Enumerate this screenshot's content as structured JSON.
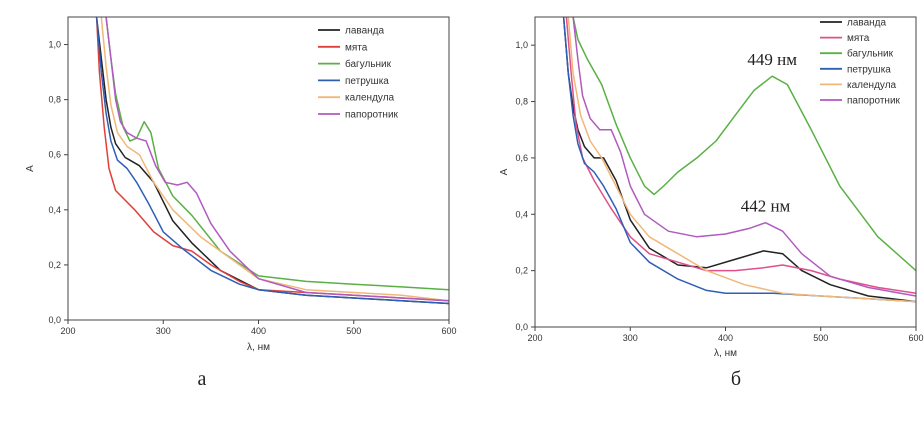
{
  "chart_data": [
    {
      "type": "line",
      "panel_label": "а",
      "xlabel": "λ, нм",
      "ylabel": "A",
      "xlim": [
        200,
        600
      ],
      "ylim": [
        0.0,
        1.1
      ],
      "xticks": [
        200,
        300,
        400,
        500,
        600
      ],
      "yticks": [
        0.0,
        0.2,
        0.4,
        0.6,
        0.8,
        1.0
      ],
      "ytick_labels": [
        "0,0",
        "0,2",
        "0,4",
        "0,6",
        "0,8",
        "1,0"
      ],
      "grid": false,
      "legend": "top-right",
      "annotations": [],
      "series": [
        {
          "name": "лаванда",
          "color": "#222222",
          "points": [
            [
              230,
              1.1
            ],
            [
              235,
              0.95
            ],
            [
              240,
              0.8
            ],
            [
              245,
              0.7
            ],
            [
              250,
              0.64
            ],
            [
              260,
              0.59
            ],
            [
              275,
              0.56
            ],
            [
              290,
              0.5
            ],
            [
              310,
              0.36
            ],
            [
              330,
              0.28
            ],
            [
              360,
              0.18
            ],
            [
              400,
              0.11
            ],
            [
              450,
              0.09
            ],
            [
              500,
              0.08
            ],
            [
              550,
              0.07
            ],
            [
              600,
              0.06
            ]
          ]
        },
        {
          "name": "мята",
          "color": "#e0403a",
          "points": [
            [
              230,
              1.1
            ],
            [
              233,
              0.9
            ],
            [
              238,
              0.7
            ],
            [
              243,
              0.55
            ],
            [
              250,
              0.47
            ],
            [
              270,
              0.4
            ],
            [
              290,
              0.32
            ],
            [
              310,
              0.27
            ],
            [
              330,
              0.25
            ],
            [
              350,
              0.2
            ],
            [
              380,
              0.14
            ],
            [
              400,
              0.11
            ],
            [
              450,
              0.1
            ],
            [
              500,
              0.09
            ],
            [
              550,
              0.08
            ],
            [
              600,
              0.07
            ]
          ]
        },
        {
          "name": "багульник",
          "color": "#5ab045",
          "points": [
            [
              240,
              1.1
            ],
            [
              245,
              0.95
            ],
            [
              250,
              0.82
            ],
            [
              258,
              0.7
            ],
            [
              265,
              0.65
            ],
            [
              272,
              0.66
            ],
            [
              280,
              0.72
            ],
            [
              287,
              0.68
            ],
            [
              295,
              0.55
            ],
            [
              310,
              0.45
            ],
            [
              330,
              0.38
            ],
            [
              360,
              0.25
            ],
            [
              400,
              0.16
            ],
            [
              450,
              0.14
            ],
            [
              500,
              0.13
            ],
            [
              550,
              0.12
            ],
            [
              600,
              0.11
            ]
          ]
        },
        {
          "name": "петрушка",
          "color": "#2f5fb5",
          "points": [
            [
              230,
              1.1
            ],
            [
              235,
              0.9
            ],
            [
              240,
              0.75
            ],
            [
              245,
              0.65
            ],
            [
              252,
              0.58
            ],
            [
              262,
              0.55
            ],
            [
              272,
              0.5
            ],
            [
              285,
              0.42
            ],
            [
              300,
              0.32
            ],
            [
              320,
              0.26
            ],
            [
              350,
              0.18
            ],
            [
              380,
              0.13
            ],
            [
              400,
              0.11
            ],
            [
              450,
              0.09
            ],
            [
              500,
              0.08
            ],
            [
              550,
              0.07
            ],
            [
              600,
              0.06
            ]
          ]
        },
        {
          "name": "календула",
          "color": "#f0b878",
          "points": [
            [
              235,
              1.1
            ],
            [
              240,
              0.92
            ],
            [
              245,
              0.78
            ],
            [
              252,
              0.68
            ],
            [
              262,
              0.63
            ],
            [
              275,
              0.6
            ],
            [
              290,
              0.5
            ],
            [
              310,
              0.4
            ],
            [
              340,
              0.3
            ],
            [
              380,
              0.2
            ],
            [
              400,
              0.15
            ],
            [
              450,
              0.11
            ],
            [
              500,
              0.1
            ],
            [
              550,
              0.09
            ],
            [
              600,
              0.07
            ]
          ]
        },
        {
          "name": "папоротник",
          "color": "#b15ac0",
          "points": [
            [
              240,
              1.1
            ],
            [
              245,
              0.95
            ],
            [
              250,
              0.8
            ],
            [
              255,
              0.72
            ],
            [
              262,
              0.68
            ],
            [
              272,
              0.66
            ],
            [
              282,
              0.65
            ],
            [
              292,
              0.56
            ],
            [
              302,
              0.5
            ],
            [
              315,
              0.49
            ],
            [
              325,
              0.5
            ],
            [
              335,
              0.46
            ],
            [
              350,
              0.35
            ],
            [
              370,
              0.25
            ],
            [
              400,
              0.15
            ],
            [
              450,
              0.1
            ],
            [
              500,
              0.09
            ],
            [
              550,
              0.08
            ],
            [
              600,
              0.07
            ]
          ]
        }
      ]
    },
    {
      "type": "line",
      "panel_label": "б",
      "xlabel": "λ, нм",
      "ylabel": "A",
      "xlim": [
        200,
        600
      ],
      "ylim": [
        0.0,
        1.1
      ],
      "xticks": [
        200,
        300,
        400,
        500,
        600
      ],
      "yticks": [
        0.0,
        0.2,
        0.4,
        0.6,
        0.8,
        1.0
      ],
      "ytick_labels": [
        "0,0",
        "0,2",
        "0,4",
        "0,6",
        "0,8",
        "1,0"
      ],
      "grid": false,
      "legend": "top-right",
      "annotations": [
        {
          "text": "449 нм",
          "x": 449,
          "y": 0.93
        },
        {
          "text": "442 нм",
          "x": 442,
          "y": 0.41
        }
      ],
      "series": [
        {
          "name": "лаванда",
          "color": "#222222",
          "points": [
            [
              230,
              1.1
            ],
            [
              235,
              0.9
            ],
            [
              240,
              0.78
            ],
            [
              245,
              0.7
            ],
            [
              252,
              0.64
            ],
            [
              262,
              0.6
            ],
            [
              272,
              0.6
            ],
            [
              285,
              0.52
            ],
            [
              300,
              0.38
            ],
            [
              320,
              0.28
            ],
            [
              350,
              0.22
            ],
            [
              380,
              0.21
            ],
            [
              410,
              0.24
            ],
            [
              440,
              0.27
            ],
            [
              460,
              0.26
            ],
            [
              480,
              0.2
            ],
            [
              510,
              0.15
            ],
            [
              550,
              0.11
            ],
            [
              600,
              0.09
            ]
          ]
        },
        {
          "name": "мята",
          "color": "#e0508a",
          "points": [
            [
              233,
              1.1
            ],
            [
              238,
              0.9
            ],
            [
              243,
              0.72
            ],
            [
              250,
              0.6
            ],
            [
              262,
              0.52
            ],
            [
              280,
              0.42
            ],
            [
              300,
              0.32
            ],
            [
              320,
              0.26
            ],
            [
              350,
              0.23
            ],
            [
              380,
              0.2
            ],
            [
              410,
              0.2
            ],
            [
              440,
              0.21
            ],
            [
              460,
              0.22
            ],
            [
              490,
              0.2
            ],
            [
              520,
              0.17
            ],
            [
              560,
              0.14
            ],
            [
              600,
              0.12
            ]
          ]
        },
        {
          "name": "багульник",
          "color": "#5ab045",
          "points": [
            [
              240,
              1.1
            ],
            [
              245,
              1.02
            ],
            [
              255,
              0.95
            ],
            [
              270,
              0.86
            ],
            [
              285,
              0.72
            ],
            [
              300,
              0.6
            ],
            [
              315,
              0.5
            ],
            [
              325,
              0.47
            ],
            [
              335,
              0.5
            ],
            [
              350,
              0.55
            ],
            [
              370,
              0.6
            ],
            [
              390,
              0.66
            ],
            [
              410,
              0.75
            ],
            [
              430,
              0.84
            ],
            [
              449,
              0.89
            ],
            [
              465,
              0.86
            ],
            [
              490,
              0.7
            ],
            [
              520,
              0.5
            ],
            [
              560,
              0.32
            ],
            [
              600,
              0.2
            ]
          ]
        },
        {
          "name": "петрушка",
          "color": "#2f5fb5",
          "points": [
            [
              230,
              1.1
            ],
            [
              235,
              0.9
            ],
            [
              240,
              0.75
            ],
            [
              245,
              0.65
            ],
            [
              252,
              0.58
            ],
            [
              262,
              0.55
            ],
            [
              272,
              0.5
            ],
            [
              285,
              0.42
            ],
            [
              300,
              0.3
            ],
            [
              320,
              0.23
            ],
            [
              350,
              0.17
            ],
            [
              380,
              0.13
            ],
            [
              400,
              0.12
            ],
            [
              450,
              0.12
            ],
            [
              500,
              0.11
            ],
            [
              550,
              0.1
            ],
            [
              600,
              0.09
            ]
          ]
        },
        {
          "name": "календула",
          "color": "#f0b878",
          "points": [
            [
              235,
              1.1
            ],
            [
              240,
              0.9
            ],
            [
              248,
              0.75
            ],
            [
              258,
              0.66
            ],
            [
              270,
              0.6
            ],
            [
              285,
              0.5
            ],
            [
              300,
              0.4
            ],
            [
              320,
              0.32
            ],
            [
              350,
              0.26
            ],
            [
              380,
              0.2
            ],
            [
              420,
              0.15
            ],
            [
              460,
              0.12
            ],
            [
              500,
              0.11
            ],
            [
              550,
              0.1
            ],
            [
              600,
              0.09
            ]
          ]
        },
        {
          "name": "папоротник",
          "color": "#b15ac0",
          "points": [
            [
              240,
              1.1
            ],
            [
              245,
              0.95
            ],
            [
              250,
              0.82
            ],
            [
              258,
              0.74
            ],
            [
              268,
              0.7
            ],
            [
              280,
              0.7
            ],
            [
              290,
              0.62
            ],
            [
              300,
              0.5
            ],
            [
              315,
              0.4
            ],
            [
              340,
              0.34
            ],
            [
              370,
              0.32
            ],
            [
              400,
              0.33
            ],
            [
              425,
              0.35
            ],
            [
              442,
              0.37
            ],
            [
              460,
              0.34
            ],
            [
              480,
              0.26
            ],
            [
              510,
              0.18
            ],
            [
              550,
              0.14
            ],
            [
              600,
              0.11
            ]
          ]
        }
      ]
    }
  ]
}
